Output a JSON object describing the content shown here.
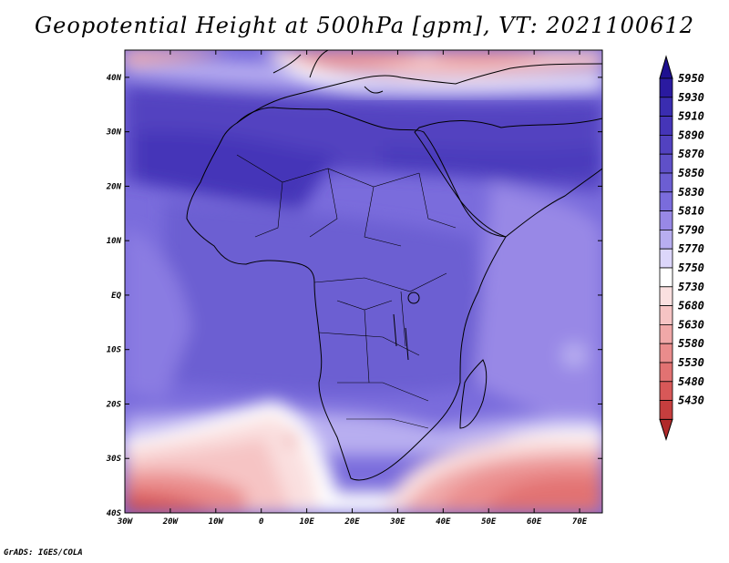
{
  "title": "Geopotential Height at 500hPa [gpm], VT: 2021100612",
  "footer": "GrADS: IGES/COLA",
  "map": {
    "lon_range": [
      -30,
      75
    ],
    "lat_range": [
      -40,
      45
    ],
    "lat_ticks": [
      {
        "value": 40,
        "label": "40N"
      },
      {
        "value": 30,
        "label": "30N"
      },
      {
        "value": 20,
        "label": "20N"
      },
      {
        "value": 10,
        "label": "10N"
      },
      {
        "value": 0,
        "label": "EQ"
      },
      {
        "value": -10,
        "label": "10S"
      },
      {
        "value": -20,
        "label": "20S"
      },
      {
        "value": -30,
        "label": "30S"
      },
      {
        "value": -40,
        "label": "40S"
      }
    ],
    "lon_ticks": [
      {
        "value": -30,
        "label": "30W"
      },
      {
        "value": -20,
        "label": "20W"
      },
      {
        "value": -10,
        "label": "10W"
      },
      {
        "value": 0,
        "label": "0"
      },
      {
        "value": 10,
        "label": "10E"
      },
      {
        "value": 20,
        "label": "20E"
      },
      {
        "value": 30,
        "label": "30E"
      },
      {
        "value": 40,
        "label": "40E"
      },
      {
        "value": 50,
        "label": "50E"
      },
      {
        "value": 60,
        "label": "60E"
      },
      {
        "value": 70,
        "label": "70E"
      }
    ]
  },
  "colorbar": {
    "levels": [
      {
        "label": "5950",
        "color": "#2a1aa0"
      },
      {
        "label": "5930",
        "color": "#3a2db0"
      },
      {
        "label": "5910",
        "color": "#4535b8"
      },
      {
        "label": "5890",
        "color": "#5242c0"
      },
      {
        "label": "5870",
        "color": "#5f50c8"
      },
      {
        "label": "5850",
        "color": "#6c5ed2"
      },
      {
        "label": "5830",
        "color": "#7a6cdc"
      },
      {
        "label": "5810",
        "color": "#9888e6"
      },
      {
        "label": "5790",
        "color": "#b8aef0"
      },
      {
        "label": "5770",
        "color": "#dcd6fa"
      },
      {
        "label": "5750",
        "color": "#ffffff"
      },
      {
        "label": "5730",
        "color": "#fae0e0"
      },
      {
        "label": "5680",
        "color": "#f6c4c4"
      },
      {
        "label": "5630",
        "color": "#f0a8a8"
      },
      {
        "label": "5580",
        "color": "#ea8c8c"
      },
      {
        "label": "5530",
        "color": "#e27272"
      },
      {
        "label": "5480",
        "color": "#d85858"
      },
      {
        "label": "5430",
        "color": "#c63e3e"
      }
    ],
    "top_arrow_color": "#1e1090",
    "bottom_arrow_color": "#b02a2a"
  }
}
